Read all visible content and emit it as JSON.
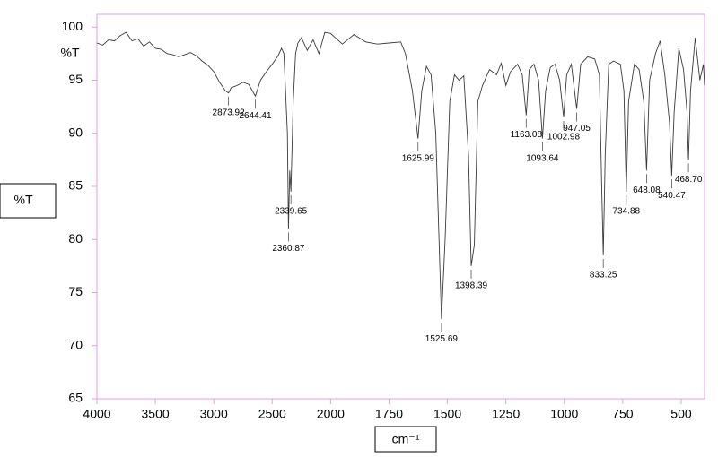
{
  "chart_data": {
    "type": "line",
    "y_label": "%T",
    "x_label": "cm⁻¹",
    "color": "#3a3a3a",
    "frame_color": "#e89be8",
    "xlim": [
      4000,
      400
    ],
    "xticks": [
      4000,
      3500,
      3000,
      2500,
      2000,
      1750,
      1500,
      1250,
      1000,
      750,
      500
    ],
    "ylim": [
      65,
      101.2
    ],
    "yticks": [
      65,
      70,
      75,
      80,
      85,
      90,
      95,
      100
    ],
    "x": [
      4000,
      3950,
      3900,
      3850,
      3800,
      3750,
      3700,
      3650,
      3600,
      3550,
      3500,
      3450,
      3400,
      3350,
      3300,
      3250,
      3200,
      3150,
      3100,
      3050,
      3000,
      2950,
      2900,
      2873.92,
      2850,
      2800,
      2750,
      2700,
      2644.41,
      2600,
      2550,
      2500,
      2450,
      2420,
      2400,
      2370,
      2360.87,
      2350,
      2339.65,
      2320,
      2300,
      2280,
      2250,
      2200,
      2150,
      2100,
      2050,
      2000,
      1950,
      1900,
      1850,
      1800,
      1750,
      1700,
      1680,
      1650,
      1625.99,
      1610,
      1590,
      1570,
      1550,
      1525.69,
      1510,
      1490,
      1470,
      1450,
      1430,
      1410,
      1398.39,
      1385,
      1370,
      1350,
      1320,
      1290,
      1270,
      1250,
      1230,
      1200,
      1180,
      1163.08,
      1150,
      1130,
      1110,
      1093.64,
      1080,
      1060,
      1040,
      1020,
      1002.98,
      990,
      970,
      947.05,
      930,
      900,
      870,
      850,
      840,
      833.25,
      825,
      810,
      790,
      760,
      745,
      734.88,
      725,
      700,
      680,
      660,
      648.08,
      635,
      610,
      590,
      570,
      550,
      540.47,
      530,
      510,
      490,
      475,
      468.7,
      460,
      440,
      420,
      405,
      400
    ],
    "values": [
      98.5,
      98.3,
      98.8,
      98.7,
      99.2,
      99.5,
      98.7,
      98.9,
      98.2,
      98.6,
      98.0,
      97.9,
      97.5,
      97.4,
      97.2,
      97.4,
      97.6,
      97.3,
      96.8,
      96.4,
      95.8,
      94.8,
      94.0,
      93.8,
      94.3,
      94.5,
      94.8,
      94.6,
      93.5,
      95.0,
      95.8,
      96.5,
      97.3,
      98.0,
      97.5,
      90,
      81,
      86.5,
      84.5,
      93,
      97.5,
      98.5,
      99.0,
      97.8,
      98.8,
      97.5,
      99.5,
      99.4,
      98.4,
      99.3,
      98.6,
      98.4,
      98.5,
      98.6,
      97.5,
      94.0,
      89.5,
      94,
      96.3,
      95.5,
      90,
      72.5,
      80,
      93,
      95.5,
      95.0,
      95.4,
      88,
      77.5,
      79.5,
      93,
      94.5,
      96.0,
      95.5,
      96.6,
      94.5,
      95.8,
      96.5,
      95.5,
      91.7,
      96.0,
      96.5,
      95.0,
      89.5,
      94,
      96.2,
      96.5,
      95.0,
      91.5,
      95.5,
      96.5,
      92.3,
      96.5,
      97.2,
      97.0,
      95.5,
      85,
      78.5,
      88,
      96.5,
      96.8,
      96.5,
      94,
      84.5,
      93,
      96.5,
      96.0,
      93,
      86.5,
      95,
      97.5,
      98.7,
      95.5,
      91,
      86,
      92,
      98.0,
      96.0,
      92,
      87.5,
      94,
      99.0,
      95.0,
      96.5,
      94.5
    ],
    "peaks": [
      {
        "x": 2873.92,
        "y": 93.8,
        "label": "2873.92"
      },
      {
        "x": 2644.41,
        "y": 93.5,
        "label": "2644.41"
      },
      {
        "x": 2360.87,
        "y": 81,
        "label": "2360.87"
      },
      {
        "x": 2339.65,
        "y": 84.5,
        "label": "2339.65"
      },
      {
        "x": 1625.99,
        "y": 89.5,
        "label": "1625.99"
      },
      {
        "x": 1525.69,
        "y": 72.5,
        "label": "1525.69"
      },
      {
        "x": 1398.39,
        "y": 77.5,
        "label": "1398.39"
      },
      {
        "x": 1163.08,
        "y": 91.7,
        "label": "1163.08"
      },
      {
        "x": 1093.64,
        "y": 89.5,
        "label": "1093.64"
      },
      {
        "x": 1002.98,
        "y": 91.5,
        "label": "1002.98"
      },
      {
        "x": 947.05,
        "y": 92.3,
        "label": "947.05"
      },
      {
        "x": 833.25,
        "y": 78.5,
        "label": "833.25"
      },
      {
        "x": 734.88,
        "y": 84.5,
        "label": "734.88"
      },
      {
        "x": 648.08,
        "y": 86.5,
        "label": "648.08"
      },
      {
        "x": 540.47,
        "y": 86,
        "label": "540.47"
      },
      {
        "x": 468.7,
        "y": 87.5,
        "label": "468.70"
      }
    ]
  }
}
